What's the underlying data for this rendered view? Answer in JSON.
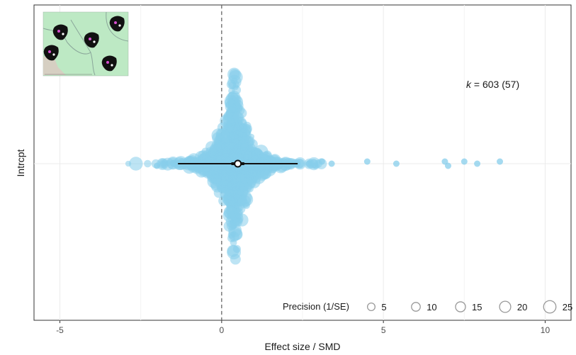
{
  "chart_data": {
    "type": "scatter",
    "subtype": "orchard-plot",
    "xlabel": "Effect size / SMD",
    "ylabel": "Intrcpt",
    "xlim": [
      -5.8,
      10.8
    ],
    "x_ticks": [
      -5,
      0,
      5,
      10
    ],
    "y_category": "Intrcpt",
    "grid": true,
    "zero_line": {
      "x": 0,
      "style": "dashed"
    },
    "point_color": "#87CEEB",
    "estimate": {
      "mean": 0.5,
      "ci_thick": [
        0.3,
        0.7
      ],
      "pi": [
        -1.35,
        2.35
      ]
    },
    "outlying_points": [
      {
        "x": -2.0,
        "y_offset": 0.01
      },
      {
        "x": -1.8,
        "y_offset": 0.0
      },
      {
        "x": 2.7,
        "y_offset": 0.0
      },
      {
        "x": 2.9,
        "y_offset": 0.01
      },
      {
        "x": 3.1,
        "y_offset": -0.01
      },
      {
        "x": 3.4,
        "y_offset": 0.0
      },
      {
        "x": 4.5,
        "y_offset": -0.01
      },
      {
        "x": 5.4,
        "y_offset": 0.0
      },
      {
        "x": 6.9,
        "y_offset": -0.01
      },
      {
        "x": 7.0,
        "y_offset": 0.01
      },
      {
        "x": 7.5,
        "y_offset": -0.01
      },
      {
        "x": 7.9,
        "y_offset": 0.0
      },
      {
        "x": 8.6,
        "y_offset": -0.01
      }
    ],
    "annotation": {
      "k_label": "k",
      "k_text": " = 603 (57)"
    },
    "legend": {
      "title": "Precision (1/SE)",
      "position": "bottom-right",
      "sizes": [
        5,
        10,
        15,
        20,
        25
      ],
      "labels": [
        "5",
        "10",
        "15",
        "20",
        "25"
      ]
    },
    "inset_map": {
      "land_color": "#bde9c4",
      "border_color": "#8aa69a",
      "marker_color": "#111111",
      "marker_count": 5
    }
  }
}
